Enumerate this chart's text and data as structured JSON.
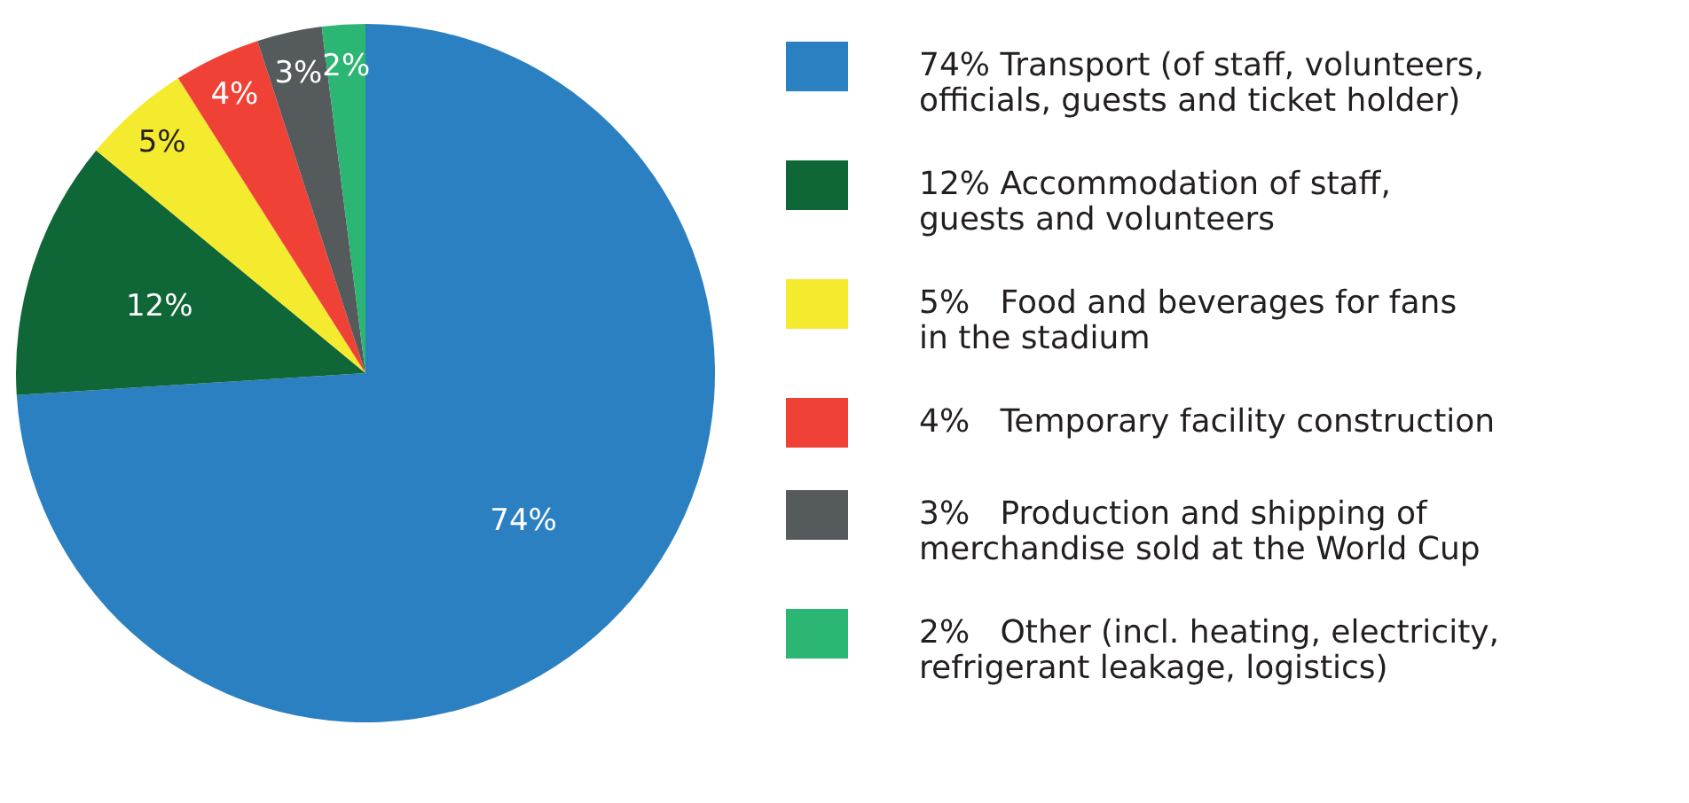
{
  "chart_data": {
    "type": "pie",
    "categories": [
      "Transport (of staff, volunteers,\nofficials, guests and ticket holder)",
      "Accommodation of staff,\nguests and volunteers",
      "Food and beverages for fans\nin the stadium",
      "Temporary  facility construction",
      "Production and shipping of\nmerchandise sold at the World Cup",
      "Other (incl. heating, electricity,\nrefrigerant leakage, logistics)"
    ],
    "values": [
      74,
      12,
      5,
      4,
      3,
      2
    ],
    "value_labels": [
      "74%",
      "12%",
      "5%",
      "4%",
      "3%",
      "2%"
    ],
    "colors": [
      "#2b80c2",
      "#0f6637",
      "#f4ea2e",
      "#ef4136",
      "#555a5c",
      "#2bb673"
    ],
    "legend": "right"
  }
}
